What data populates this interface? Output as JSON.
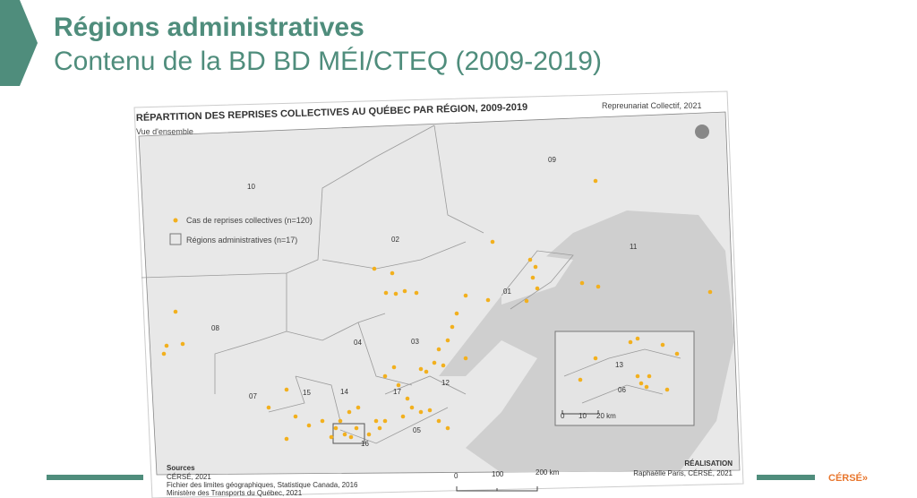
{
  "header": {
    "title": "Régions administratives",
    "subtitle": "Contenu de la BD BD MÉI/CTEQ (2009-2019)"
  },
  "map": {
    "title": "RÉPARTITION DES REPRISES COLLECTIVES AU QUÉBEC PAR RÉGION, 2009-2019",
    "credit": "Repreunariat Collectif, 2021",
    "subtitle": "Vue d'ensemble",
    "legend": [
      "Cas de reprises collectives (n=120)",
      "Régions administratives (n=17)"
    ],
    "regions": [
      "10",
      "02",
      "09",
      "11",
      "08",
      "01",
      "04",
      "03",
      "07",
      "15",
      "14",
      "17",
      "12",
      "05",
      "16",
      "13",
      "06"
    ],
    "scale": [
      "0",
      "100",
      "200 km"
    ],
    "inset_scale": [
      "0",
      "10",
      "20 km"
    ],
    "sources": [
      "Sources",
      "CÉRSÉ, 2021",
      "Fichier des limites géographiques, Statistique Canada, 2016",
      "Ministère des Transports du Québec, 2021"
    ],
    "realisation": [
      "RÉALISATION",
      "Raphaëlle Paris, CÉRSÉ, 2021"
    ]
  },
  "footer": {
    "logo": "CÉRSÉ»"
  }
}
